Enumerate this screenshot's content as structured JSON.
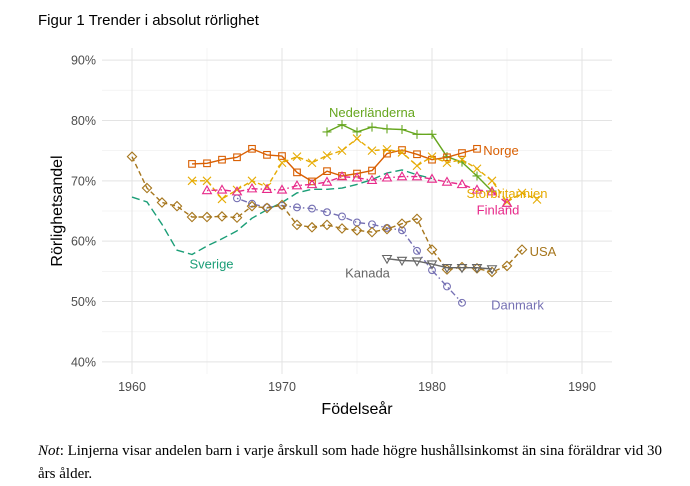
{
  "figure_title": "Figur 1 Trender i absolut rörlighet",
  "note": {
    "label": "Not",
    "text": ": Linjerna visar andelen barn i varje årskull som hade högre hushållsinkomst än sina föräldrar vid 30 års ålder."
  },
  "chart_data": {
    "type": "line",
    "title": "Figur 1 Trender i absolut rörlighet",
    "xlabel": "Födelseår",
    "ylabel": "Rörlighetsandel",
    "xlim": [
      1958,
      1992
    ],
    "ylim": [
      38,
      92
    ],
    "x_ticks": [
      1960,
      1970,
      1980,
      1990
    ],
    "y_ticks": [
      40,
      50,
      60,
      70,
      80,
      90
    ],
    "y_tick_labels": [
      "40%",
      "50%",
      "60%",
      "70%",
      "80%",
      "90%"
    ],
    "grid": true,
    "legend": "direct labels",
    "series": [
      {
        "name": "Sverige",
        "color": "#1b9e77",
        "dash": "long",
        "marker": "none",
        "label_x": 1965.3,
        "label_y": 56.2,
        "x": [
          1960,
          1961,
          1962,
          1963,
          1964,
          1965,
          1966,
          1967,
          1968,
          1969,
          1970,
          1971,
          1972,
          1973,
          1974,
          1975,
          1976,
          1977,
          1978,
          1979,
          1980
        ],
        "y": [
          67.3,
          66.5,
          62.8,
          58.5,
          57.8,
          59.2,
          60.4,
          61.7,
          63.8,
          65.2,
          66.4,
          68.0,
          68.6,
          68.6,
          68.8,
          69.4,
          70.2,
          71.3,
          71.8,
          71.0,
          70.4
        ]
      },
      {
        "name": "Danmark",
        "color": "#7570b3",
        "dash": "dotdash",
        "marker": "circle",
        "label_x": 1985.7,
        "label_y": 49.4,
        "x": [
          1967,
          1968,
          1969,
          1970,
          1971,
          1972,
          1973,
          1974,
          1975,
          1976,
          1977,
          1978,
          1979,
          1980,
          1981,
          1982
        ],
        "y": [
          67.1,
          66.2,
          65.6,
          65.9,
          65.6,
          65.4,
          64.8,
          64.1,
          63.1,
          62.8,
          62.2,
          61.8,
          58.4,
          55.2,
          52.5,
          49.8
        ]
      },
      {
        "name": "USA",
        "color": "#a6761d",
        "dash": "dashed",
        "marker": "diamond",
        "label_x": 1987.4,
        "label_y": 58.3,
        "x": [
          1960,
          1961,
          1962,
          1963,
          1964,
          1965,
          1966,
          1967,
          1968,
          1969,
          1970,
          1971,
          1972,
          1973,
          1974,
          1975,
          1976,
          1977,
          1978,
          1979,
          1980,
          1981,
          1982,
          1983,
          1984,
          1985,
          1986
        ],
        "y": [
          74.0,
          68.8,
          66.4,
          65.8,
          64.0,
          64.0,
          64.1,
          63.9,
          65.8,
          65.5,
          66.0,
          62.7,
          62.3,
          62.7,
          62.1,
          61.8,
          61.5,
          62.0,
          62.9,
          63.7,
          58.6,
          55.3,
          55.7,
          55.5,
          54.9,
          55.9,
          58.6
        ]
      },
      {
        "name": "Nederländerna",
        "color": "#66a61e",
        "dash": "solid",
        "marker": "plus",
        "label_x": 1976.0,
        "label_y": 81.3,
        "x": [
          1973,
          1974,
          1975,
          1976,
          1977,
          1978,
          1979,
          1980,
          1981,
          1982,
          1983,
          1984
        ],
        "y": [
          78.1,
          79.3,
          78.1,
          78.9,
          78.6,
          78.5,
          77.7,
          77.7,
          74.0,
          73.1,
          70.8,
          68.3
        ]
      },
      {
        "name": "Norge",
        "color": "#d95f02",
        "dash": "solid",
        "marker": "square",
        "label_x": 1984.6,
        "label_y": 75.0,
        "x": [
          1964,
          1965,
          1966,
          1967,
          1968,
          1969,
          1970,
          1971,
          1972,
          1973,
          1974,
          1975,
          1976,
          1977,
          1978,
          1979,
          1980,
          1981,
          1982,
          1983
        ],
        "y": [
          72.8,
          72.9,
          73.5,
          73.9,
          75.3,
          74.3,
          74.1,
          71.4,
          69.9,
          71.6,
          70.8,
          71.2,
          71.7,
          74.5,
          75.1,
          74.4,
          73.5,
          73.9,
          74.6,
          75.3
        ]
      },
      {
        "name": "Storbritannien",
        "color": "#e6ab02",
        "dash": "dashed",
        "marker": "cross",
        "label_x": 1985.0,
        "label_y": 67.9,
        "x": [
          1964,
          1965,
          1966,
          1967,
          1968,
          1969,
          1970,
          1971,
          1972,
          1973,
          1974,
          1975,
          1976,
          1977,
          1978,
          1979,
          1980,
          1981,
          1982,
          1983,
          1984,
          1985,
          1986,
          1987
        ],
        "y": [
          70.0,
          70.0,
          67.0,
          68.5,
          70.0,
          69.0,
          73.0,
          74.0,
          73.0,
          74.2,
          75.0,
          77.0,
          75.0,
          75.2,
          74.7,
          72.5,
          74.0,
          73.0,
          73.5,
          72.0,
          70.0,
          66.5,
          68.0,
          66.9
        ]
      },
      {
        "name": "Finland",
        "color": "#e7298a",
        "dash": "dotdash",
        "marker": "triangle-up",
        "label_x": 1984.4,
        "label_y": 65.2,
        "x": [
          1965,
          1966,
          1967,
          1968,
          1969,
          1970,
          1971,
          1972,
          1973,
          1974,
          1975,
          1976,
          1977,
          1978,
          1979,
          1980,
          1981,
          1982,
          1983,
          1984,
          1985
        ],
        "y": [
          68.4,
          68.5,
          68.2,
          68.7,
          68.6,
          68.5,
          69.2,
          69.4,
          69.8,
          70.7,
          70.5,
          70.1,
          70.5,
          70.7,
          70.7,
          70.3,
          69.8,
          69.4,
          68.5,
          68.2,
          66.3
        ]
      },
      {
        "name": "Kanada",
        "color": "#666666",
        "dash": "solid",
        "marker": "triangle-down",
        "label_x": 1975.7,
        "label_y": 54.7,
        "x": [
          1977,
          1978,
          1979,
          1980,
          1981,
          1982,
          1983,
          1984
        ],
        "y": [
          57.1,
          56.8,
          56.7,
          56.2,
          55.6,
          55.6,
          55.6,
          55.4
        ]
      }
    ]
  }
}
